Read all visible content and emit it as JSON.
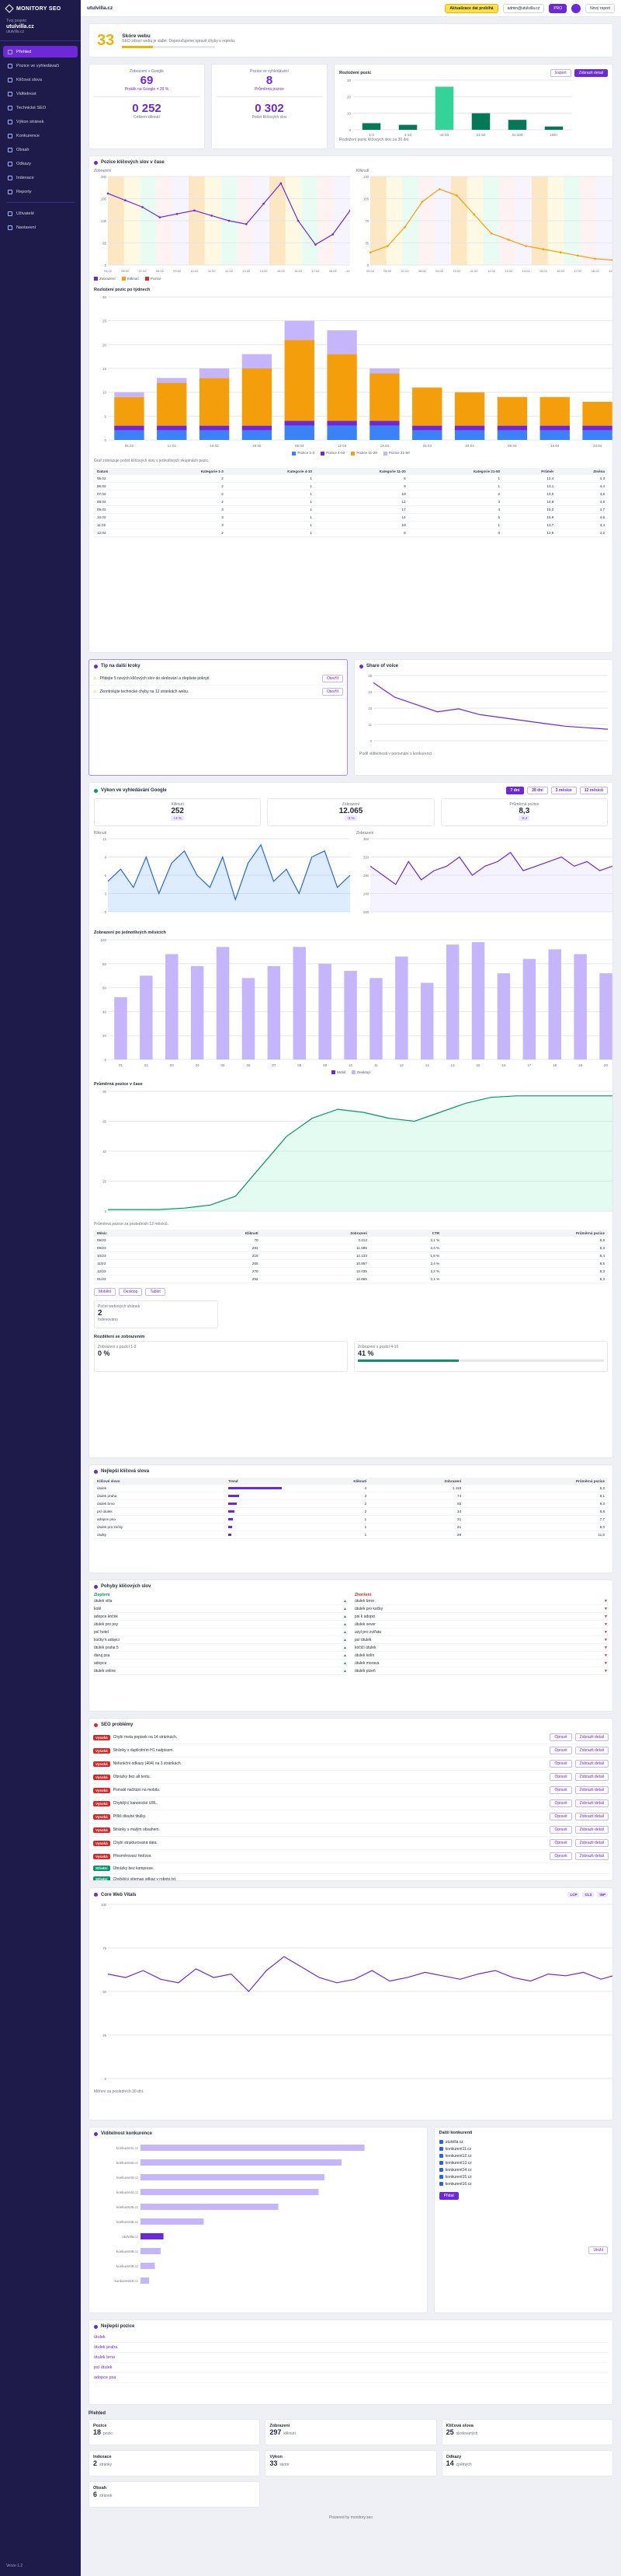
{
  "app": {
    "brand": "MONITORY SEO",
    "project_label": "Tvoj projekt",
    "project_name": "utulvilla.cz",
    "project_sub": "utulvilla.cz",
    "footer": "Verze 1.2"
  },
  "nav": [
    {
      "label": "Přehled",
      "active": true
    },
    {
      "label": "Pozice ve vyhledávači",
      "active": false
    },
    {
      "label": "Klíčová slova",
      "active": false
    },
    {
      "label": "Viditelnost",
      "active": false
    },
    {
      "label": "Technické SEO",
      "active": false
    },
    {
      "label": "Výkon stránek",
      "active": false
    },
    {
      "label": "Konkurence",
      "active": false
    },
    {
      "label": "Obsah",
      "active": false
    },
    {
      "label": "Odkazy",
      "active": false
    },
    {
      "label": "Indexace",
      "active": false
    },
    {
      "label": "Reporty",
      "active": false
    },
    {
      "label": "Uživatelé",
      "active": false
    },
    {
      "label": "Nastavení",
      "active": false
    }
  ],
  "topbar": {
    "site": "utulvilla.cz",
    "alert": "Aktualizace dat probíhá",
    "user": "admin@utulvilla.cz",
    "plan": "PRO",
    "btn": "Nový report"
  },
  "score": {
    "value": "33",
    "title": "Skóre webu",
    "desc": "SEO zdraví webu je slabé. Doporučujeme opravit chyby v reportu."
  },
  "stat_cards": [
    {
      "title": "Zobrazení v Google",
      "value": "69",
      "sub": "Proklik na Google = 29 %",
      "value2": "0 252",
      "sub2": "Celkem kliknutí"
    },
    {
      "title": "Pozice ve vyhledávání",
      "value": "8",
      "sub": "Průměrná pozice",
      "value2": "0 302",
      "sub2": "Počet klíčových slov"
    }
  ],
  "mini_chart": {
    "title": "Rozložení pozic",
    "btn1": "Export",
    "btn2": "Zobrazit detail",
    "categories": [
      "1-3",
      "4-10",
      "11-20",
      "21-50",
      "51-100",
      "100+"
    ],
    "values": [
      4,
      3,
      26,
      10,
      6,
      2
    ],
    "legend": "Rozložení pozic klíčových slov za 30 dní"
  },
  "top_chart": {
    "title": "Pozice klíčových slov v čase",
    "left_label": "Zobrazení",
    "right_label": "Kliknutí",
    "left_series": [
      210,
      190,
      170,
      140,
      150,
      160,
      145,
      130,
      120,
      180,
      240,
      130,
      60,
      90,
      160
    ],
    "right_series": [
      20,
      30,
      60,
      100,
      120,
      110,
      80,
      50,
      40,
      30,
      25,
      20,
      15,
      10,
      8
    ],
    "x": [
      "05.02",
      "06.02",
      "07.02",
      "08.02",
      "09.02",
      "10.02",
      "11.02",
      "12.02",
      "13.02",
      "14.02",
      "15.02",
      "16.02",
      "17.02",
      "18.02",
      "19.02"
    ],
    "legend": [
      "Zobrazení",
      "Kliknutí",
      "Pozice"
    ]
  },
  "stacked": {
    "title": "Rozložení pozic po týdnech",
    "categories": [
      "05.02",
      "12.02",
      "19.02",
      "26.02",
      "05.03",
      "12.03",
      "19.03",
      "26.03",
      "02.04",
      "09.04",
      "16.04",
      "23.04"
    ],
    "series": [
      {
        "name": "Pozice 1-3",
        "color": "#3b82f6",
        "values": [
          2,
          2,
          2,
          2,
          3,
          3,
          3,
          2,
          2,
          2,
          2,
          2
        ]
      },
      {
        "name": "Pozice 4-10",
        "color": "#6d28d9",
        "values": [
          1,
          1,
          1,
          1,
          1,
          1,
          1,
          1,
          1,
          1,
          1,
          1
        ]
      },
      {
        "name": "Pozice 11-20",
        "color": "#f59e0b",
        "values": [
          6,
          9,
          10,
          12,
          17,
          14,
          10,
          8,
          7,
          6,
          6,
          5
        ]
      },
      {
        "name": "Pozice 21-50",
        "color": "#c4b5fd",
        "values": [
          1,
          1,
          2,
          3,
          4,
          5,
          1,
          0,
          0,
          0,
          0,
          0
        ]
      }
    ],
    "note": "Graf zobrazuje počet klíčových slov v jednotlivých skupinách pozic."
  },
  "pos_table": {
    "headers": [
      "Datum",
      "Kategorie 1-3",
      "Kategorie 4-10",
      "Kategorie 11-20",
      "Kategorie 21-50",
      "Průměr",
      "Změna"
    ],
    "rows": [
      [
        "05.02",
        "2",
        "1",
        "6",
        "1",
        "12,4",
        "4,3"
      ],
      [
        "06.02",
        "2",
        "1",
        "9",
        "1",
        "13,1",
        "4,4"
      ],
      [
        "07.02",
        "2",
        "1",
        "10",
        "2",
        "14,0",
        "4,6"
      ],
      [
        "08.02",
        "2",
        "1",
        "12",
        "3",
        "14,8",
        "4,5"
      ],
      [
        "09.02",
        "3",
        "1",
        "17",
        "4",
        "15,2",
        "4,7"
      ],
      [
        "10.02",
        "3",
        "1",
        "14",
        "5",
        "15,9",
        "4,6"
      ],
      [
        "11.02",
        "3",
        "1",
        "10",
        "1",
        "13,7",
        "4,4"
      ],
      [
        "12.02",
        "2",
        "1",
        "8",
        "0",
        "12,5",
        "4,2"
      ]
    ]
  },
  "tips": {
    "title": "Tip na další kroky",
    "items": [
      "Přidejte 5 nových klíčových slov do sledování a zlepšete pokrytí.",
      "Zkontrolujte technické chyby na 12 stránkách webu."
    ],
    "btn": "Otevřít"
  },
  "share": {
    "title": "Share of voice",
    "values": [
      40,
      30,
      25,
      20,
      22,
      18,
      16,
      14,
      12,
      10,
      9,
      8
    ],
    "note": "Podíl viditelnosti v porovnání s konkurencí."
  },
  "gsc": {
    "title": "Výkon ve vyhledávání Google",
    "tabs": [
      "7 dní",
      "28 dní",
      "3 měsíce",
      "12 měsíců"
    ],
    "metrics": [
      {
        "label": "Kliknutí",
        "value": "252",
        "delta": "+4 %"
      },
      {
        "label": "Zobrazení",
        "value": "12.065",
        "delta": "-2 %"
      },
      {
        "label": "Průměrná pozice",
        "value": "8,3",
        "delta": "-0,4"
      }
    ],
    "left_title": "Kliknutí",
    "right_title": "Zobrazení",
    "left_series": [
      5,
      7,
      4,
      9,
      3,
      8,
      10,
      6,
      4,
      9,
      2,
      8,
      11,
      5,
      7,
      3,
      9,
      10,
      4,
      6
    ],
    "right_series": [
      300,
      280,
      260,
      310,
      270,
      290,
      300,
      320,
      280,
      300,
      310,
      330,
      290,
      300,
      310,
      320,
      300,
      310,
      290,
      300
    ]
  },
  "bars_by_month": {
    "title": "Zobrazení po jednotlivých měsících",
    "categories": [
      "01",
      "02",
      "03",
      "04",
      "05",
      "06",
      "07",
      "08",
      "09",
      "10",
      "11",
      "12",
      "13",
      "14",
      "15",
      "16",
      "17",
      "18",
      "19",
      "20"
    ],
    "values": [
      52,
      70,
      88,
      78,
      94,
      68,
      78,
      94,
      80,
      74,
      68,
      86,
      64,
      96,
      98,
      72,
      84,
      92,
      88,
      72
    ],
    "legend": [
      "Mobil",
      "Desktop"
    ]
  },
  "growth": {
    "title": "Průměrná pozice v čase",
    "values": [
      1,
      1,
      1,
      2,
      4,
      10,
      30,
      50,
      62,
      68,
      66,
      62,
      60,
      66,
      72,
      76,
      77,
      77,
      77,
      77,
      77
    ],
    "note": "Průměrná pozice za posledních 12 měsíců."
  },
  "growth_table": {
    "headers": [
      "Měsíc",
      "Kliknutí",
      "Zobrazení",
      "CTR",
      "Průměrná pozice"
    ],
    "rows": [
      [
        "08/23",
        "70",
        "3.412",
        "2,1 %",
        "8,8"
      ],
      [
        "09/23",
        "281",
        "11.685",
        "2,4 %",
        "8,3"
      ],
      [
        "10/23",
        "216",
        "12.133",
        "1,8 %",
        "8,4"
      ],
      [
        "11/23",
        "265",
        "10.857",
        "2,4 %",
        "8,5"
      ],
      [
        "12/23",
        "270",
        "12.035",
        "2,2 %",
        "8,3"
      ],
      [
        "01/24",
        "252",
        "12.065",
        "2,1 %",
        "8,3"
      ]
    ]
  },
  "filters": [
    "Mobilní",
    "Desktop",
    "Tablet"
  ],
  "web_pages": {
    "title": "Počet webových stránek",
    "value": "2",
    "sub": "Indexováno"
  },
  "position_split": {
    "title": "Rozdělení se zobrazením",
    "left_title": "Zobrazení s pozicí 1-3",
    "left_val": "0 %",
    "right_title": "Zobrazení s pozicí 4-10",
    "right_val": "41 %"
  },
  "top_keywords": {
    "title": "Nejlepší klíčová slova",
    "headers": [
      "Klíčové slovo",
      "Trend",
      "Kliknutí",
      "Zobrazení",
      "Průměrná pozice"
    ],
    "rows": [
      [
        "útulek",
        "4",
        "1.115",
        "6,2"
      ],
      [
        "útulek praha",
        "3",
        "74",
        "8,1"
      ],
      [
        "útulek brno",
        "2",
        "65",
        "9,3"
      ],
      [
        "psí útulek",
        "2",
        "34",
        "8,8"
      ],
      [
        "adopce psa",
        "1",
        "31",
        "7,7"
      ],
      [
        "útulek pro kočky",
        "1",
        "21",
        "9,0"
      ],
      [
        "útulky",
        "1",
        "29",
        "11,6"
      ]
    ],
    "trend": [
      90,
      18,
      14,
      10,
      8,
      6,
      5
    ]
  },
  "kw_changes": {
    "title": "Pohyby klíčových slov",
    "left_title": "Zlepšení",
    "right_title": "Zhoršení",
    "left": [
      "útulek villa",
      "kotě",
      "adopce koček",
      "útulek pro psy",
      "psí hotel",
      "kočky k adopci",
      "útulek praha 5",
      "daruj psa",
      "adopce",
      "útulek online"
    ],
    "right": [
      "útulek brno",
      "útulek pro kočky",
      "psi k adopci",
      "útulek sever",
      "azyl pro zvířata",
      "psí útulek",
      "kočičí útulek",
      "útulek kolín",
      "útulek morava",
      "útulek plzeň"
    ]
  },
  "audit": {
    "title": "SEO problémy",
    "items": [
      {
        "level": "Vysoká",
        "text": "Chybí meta popisek na 14 stránkách."
      },
      {
        "level": "Vysoká",
        "text": "Stránky s duplicitním H1 nadpisem."
      },
      {
        "level": "Vysoká",
        "text": "Nefunkční odkazy (404) na 3 stránkách."
      },
      {
        "level": "Vysoká",
        "text": "Obrázky bez alt textu."
      },
      {
        "level": "Vysoká",
        "text": "Pomalé načítání na mobilu."
      },
      {
        "level": "Vysoká",
        "text": "Chybějící kanonické URL."
      },
      {
        "level": "Vysoká",
        "text": "Příliš dlouhé titulky."
      },
      {
        "level": "Vysoká",
        "text": "Stránky s malým obsahem."
      },
      {
        "level": "Vysoká",
        "text": "Chybí strukturovaná data."
      },
      {
        "level": "Vysoká",
        "text": "Přesměrovací řetězce."
      },
      {
        "level": "Střední",
        "text": "Obrázky bez komprese."
      },
      {
        "level": "Střední",
        "text": "Chybějící sitemap odkaz v robots.txt."
      }
    ],
    "btn1": "Opravit",
    "btn2": "Zobrazit detail"
  },
  "cwv": {
    "title": "Core Web Vitals",
    "tags": [
      "LCP",
      "CLS",
      "INP"
    ],
    "values": [
      60,
      58,
      62,
      57,
      55,
      63,
      58,
      60,
      50,
      62,
      70,
      64,
      58,
      55,
      57,
      62,
      56,
      58,
      61,
      59,
      57,
      60,
      62,
      58,
      56,
      60,
      59,
      61,
      57,
      60
    ],
    "note": "Měření za posledních 30 dní."
  },
  "competitors": {
    "title": "Viditelnost konkurence",
    "items": [
      {
        "name": "konkurent1.cz",
        "value": 78
      },
      {
        "name": "konkurent2.cz",
        "value": 70
      },
      {
        "name": "konkurent3.cz",
        "value": 64
      },
      {
        "name": "konkurent4.cz",
        "value": 62
      },
      {
        "name": "konkurent5.cz",
        "value": 48
      },
      {
        "name": "konkurent6.cz",
        "value": 22
      },
      {
        "name": "utulvilla.cz",
        "value": 8
      },
      {
        "name": "konkurent8.cz",
        "value": 7
      },
      {
        "name": "konkurent9.cz",
        "value": 5
      },
      {
        "name": "konkurent10.cz",
        "value": 3
      }
    ],
    "right_title": "Další konkurenti",
    "right_items": [
      "utulvilla.cz",
      "konkurent11.cz",
      "konkurent12.cz",
      "konkurent13.cz",
      "konkurent14.cz",
      "konkurent15.cz",
      "konkurent16.cz"
    ],
    "btn": "Přidat",
    "btn2": "Uložit"
  },
  "top_positions": {
    "title": "Nejlepší pozice",
    "items": [
      "útulek",
      "útulek praha",
      "útulek brno",
      "psí útulek",
      "adopce psa"
    ]
  },
  "overview": {
    "title": "Přehled",
    "cards": [
      {
        "title": "Pozice",
        "value": "18",
        "sub": "pozic"
      },
      {
        "title": "Zobrazení",
        "value": "297",
        "sub": "kliknutí"
      },
      {
        "title": "Klíčová slova",
        "value": "25",
        "sub": "sledovaných"
      },
      {
        "title": "Indexace",
        "value": "2",
        "sub": "stránky"
      },
      {
        "title": "Výkon",
        "value": "33",
        "sub": "skóre"
      },
      {
        "title": "Odkazy",
        "value": "14",
        "sub": "zpětných"
      },
      {
        "title": "Obsah",
        "value": "6",
        "sub": "stránek"
      }
    ]
  },
  "footer": "Powered by monitory.seo"
}
